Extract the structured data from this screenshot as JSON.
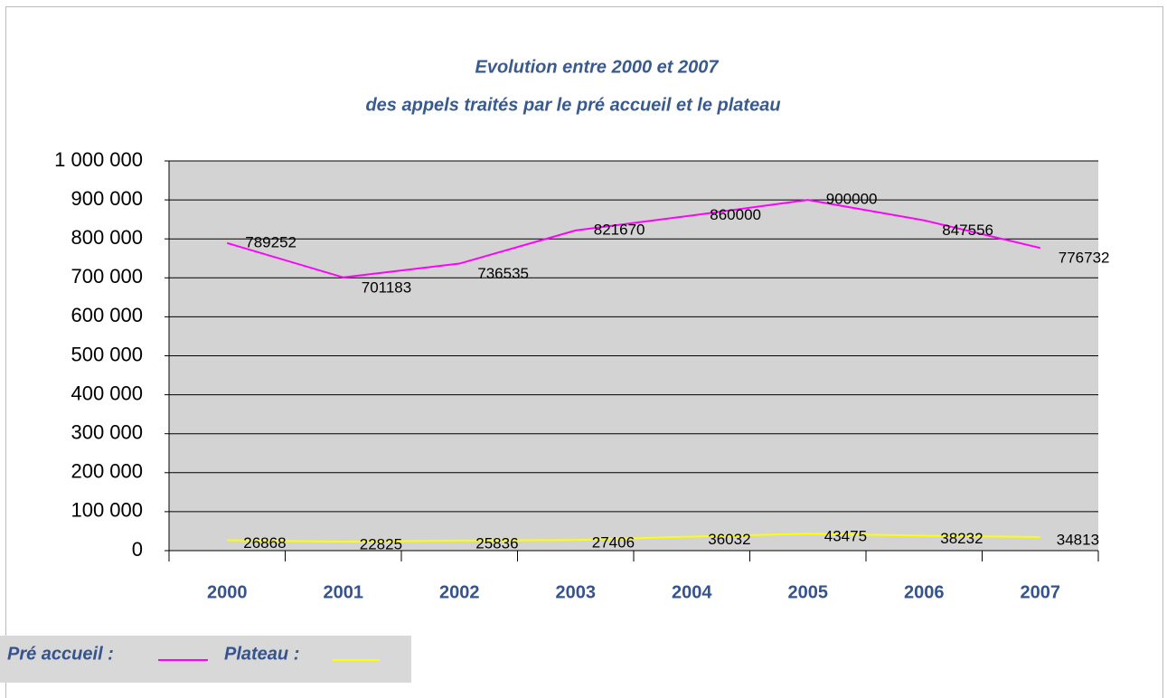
{
  "chart_data": {
    "type": "line",
    "title": "Evolution entre 2000 et 2007",
    "subtitle": "des appels traités par le pré accueil et le plateau",
    "categories": [
      "2000",
      "2001",
      "2002",
      "2003",
      "2004",
      "2005",
      "2006",
      "2007"
    ],
    "series": [
      {
        "name": "Pré accueil :",
        "color": "#ff00ff",
        "values": [
          789252,
          701183,
          736535,
          821670,
          860000,
          900000,
          847556,
          776732
        ]
      },
      {
        "name": "Plateau :",
        "color": "#ffff00",
        "values": [
          26868,
          22825,
          25836,
          27406,
          36032,
          43475,
          38232,
          34813
        ]
      }
    ],
    "ylim": [
      0,
      1000000
    ],
    "yticks": [
      0,
      {
        "value": 100000,
        "label": "100 000"
      },
      {
        "value": 200000,
        "label": "200 000"
      },
      {
        "value": 300000,
        "label": "300 000"
      },
      {
        "value": 400000,
        "label": "400 000"
      },
      {
        "value": 500000,
        "label": "500 000"
      },
      {
        "value": 600000,
        "label": "600 000"
      },
      {
        "value": 700000,
        "label": "700 000"
      },
      {
        "value": 800000,
        "label": "800 000"
      },
      {
        "value": 900000,
        "label": "900 000"
      },
      {
        "value": 1000000,
        "label": "1 000 000"
      }
    ],
    "grid": true
  }
}
